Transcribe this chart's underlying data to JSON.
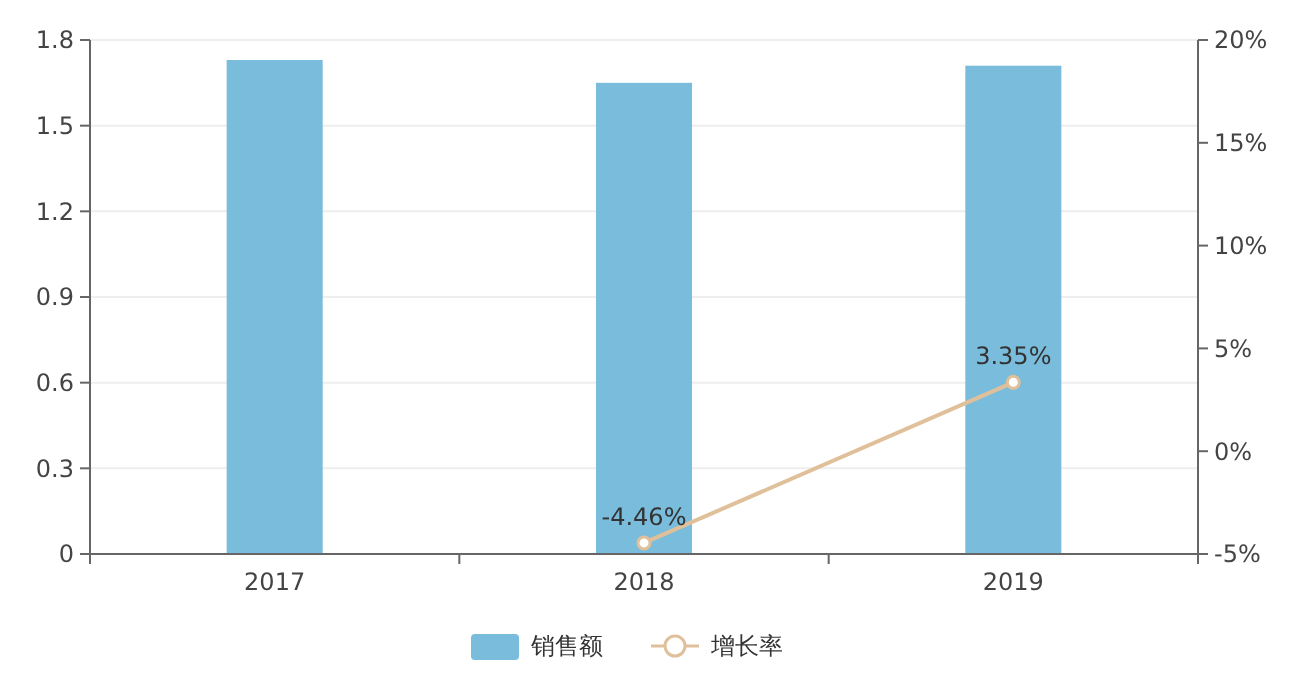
{
  "chart_data": {
    "type": "bar",
    "categories": [
      "2017",
      "2018",
      "2019"
    ],
    "series": [
      {
        "name": "销售额",
        "color": "#7abcdb",
        "values": [
          1.73,
          1.65,
          1.71
        ]
      },
      {
        "name": "增长率",
        "type": "line",
        "axis": "y2",
        "color": "#e0c09a",
        "values": [
          null,
          -4.46,
          3.35
        ],
        "value_labels": [
          null,
          "-4.46%",
          "3.35%"
        ]
      }
    ],
    "ylim": [
      0,
      1.8
    ],
    "yticks": [
      0,
      0.3,
      0.6,
      0.9,
      1.2,
      1.5,
      1.8
    ],
    "y2lim": [
      -5,
      20
    ],
    "y2ticks": [
      {
        "value": -5,
        "label": "-5%"
      },
      {
        "value": 0,
        "label": "0%"
      },
      {
        "value": 5,
        "label": "5%"
      },
      {
        "value": 10,
        "label": "10%"
      },
      {
        "value": 15,
        "label": "15%"
      },
      {
        "value": 20,
        "label": "20%"
      }
    ],
    "grid": "y",
    "legend": "bottom",
    "marker": "circle",
    "line_style": "solid"
  }
}
